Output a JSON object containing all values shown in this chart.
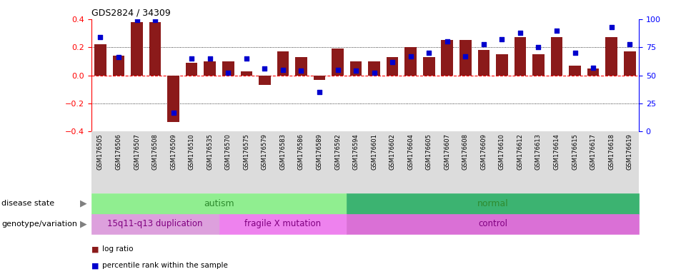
{
  "title": "GDS2824 / 34309",
  "samples": [
    "GSM176505",
    "GSM176506",
    "GSM176507",
    "GSM176508",
    "GSM176509",
    "GSM176510",
    "GSM176535",
    "GSM176570",
    "GSM176575",
    "GSM176579",
    "GSM176583",
    "GSM176586",
    "GSM176589",
    "GSM176592",
    "GSM176594",
    "GSM176601",
    "GSM176602",
    "GSM176604",
    "GSM176605",
    "GSM176607",
    "GSM176608",
    "GSM176609",
    "GSM176610",
    "GSM176612",
    "GSM176613",
    "GSM176614",
    "GSM176615",
    "GSM176617",
    "GSM176618",
    "GSM176619"
  ],
  "log_ratio": [
    0.22,
    0.14,
    0.38,
    0.38,
    -0.33,
    0.09,
    0.1,
    0.1,
    0.03,
    -0.07,
    0.17,
    0.13,
    -0.03,
    0.19,
    0.1,
    0.1,
    0.13,
    0.2,
    0.13,
    0.25,
    0.25,
    0.18,
    0.15,
    0.27,
    0.15,
    0.27,
    0.07,
    0.05,
    0.27,
    0.17
  ],
  "percentile_rank": [
    84,
    66,
    99,
    99,
    17,
    65,
    65,
    52,
    65,
    56,
    55,
    54,
    35,
    55,
    54,
    52,
    62,
    67,
    70,
    80,
    67,
    78,
    82,
    88,
    75,
    90,
    70,
    57,
    93,
    78
  ],
  "bar_color": "#8B1A1A",
  "dot_color": "#0000CD",
  "ylim_left": [
    -0.4,
    0.4
  ],
  "ylim_right": [
    0,
    100
  ],
  "yticks_left": [
    -0.4,
    -0.2,
    0.0,
    0.2,
    0.4
  ],
  "yticks_right": [
    0,
    25,
    50,
    75,
    100
  ],
  "disease_labels": [
    "autism",
    "normal"
  ],
  "disease_boundaries": [
    0,
    14,
    30
  ],
  "disease_colors": [
    "#90EE90",
    "#3CB371"
  ],
  "disease_text_color": "#2E8B2E",
  "genotype_labels": [
    "15q11-q13 duplication",
    "fragile X mutation",
    "control"
  ],
  "genotype_boundaries": [
    0,
    7,
    14,
    30
  ],
  "genotype_colors": [
    "#DDA0DD",
    "#EE82EE",
    "#DA70D6"
  ],
  "genotype_text_color": "#800080",
  "label_fontsize": 8,
  "tick_label_fontsize": 6,
  "left_label": "disease state",
  "geno_label": "genotype/variation",
  "legend": [
    {
      "color": "#8B1A1A",
      "label": "log ratio"
    },
    {
      "color": "#0000CD",
      "label": "percentile rank within the sample"
    }
  ],
  "xticklabel_bg": "#DCDCDC"
}
